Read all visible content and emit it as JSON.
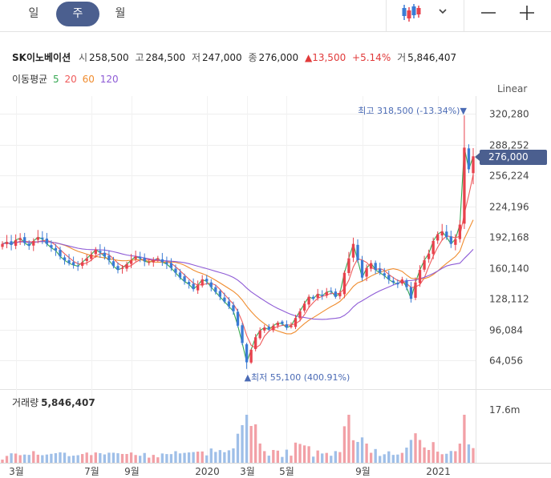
{
  "toolbar": {
    "period_tabs": [
      {
        "label": "일",
        "active": false
      },
      {
        "label": "주",
        "active": true
      },
      {
        "label": "월",
        "active": false
      }
    ],
    "chart_type_icon": "candlestick-icon",
    "dropdown_icon": "chevron-down-icon",
    "zoom_out_icon": "minus-icon",
    "zoom_in_icon": "plus-icon"
  },
  "quote": {
    "name": "SK이노베이션",
    "open_label": "시",
    "open": "258,500",
    "high_label": "고",
    "high": "284,500",
    "low_label": "저",
    "low": "247,000",
    "close_label": "종",
    "close": "276,000",
    "change": "13,500",
    "change_pct": "+5.14%",
    "volume_label": "거",
    "volume": "5,846,407"
  },
  "moving_average": {
    "label": "이동평균",
    "items": [
      {
        "period": "5",
        "color": "#36a852"
      },
      {
        "period": "20",
        "color": "#ef5b5b"
      },
      {
        "period": "60",
        "color": "#f08c2e"
      },
      {
        "period": "120",
        "color": "#8e5bd6"
      }
    ]
  },
  "scale_mode": "Linear",
  "price_badge": "276,000",
  "colors": {
    "up": "#e8424d",
    "down": "#3a7bd5",
    "up_volume": "#f2a0a6",
    "down_volume": "#9fbfe8",
    "accent": "#4b5f8f"
  },
  "chart_data": {
    "type": "candlestick",
    "y_axis": {
      "ticks": [
        64056,
        96084,
        128112,
        160140,
        192168,
        224196,
        256224,
        288252,
        320280
      ],
      "tick_labels": [
        "64,056",
        "96,084",
        "128,112",
        "160,140",
        "192,168",
        "224,196",
        "256,224",
        "288,252",
        "320,280"
      ]
    },
    "x_axis": {
      "ticks": [
        {
          "label": "3월",
          "index": 3
        },
        {
          "label": "7월",
          "index": 20
        },
        {
          "label": "9월",
          "index": 29
        },
        {
          "label": "2020",
          "index": 46
        },
        {
          "label": "3월",
          "index": 55
        },
        {
          "label": "5월",
          "index": 64
        },
        {
          "label": "9월",
          "index": 81
        },
        {
          "label": "2021",
          "index": 98
        }
      ]
    },
    "annotations": {
      "high_label": "최고",
      "high": "318,500",
      "high_pct": "(-13.34%)",
      "low_label": "최저",
      "low": "55,100",
      "low_pct": "(400.91%)"
    },
    "volume": {
      "label": "거래량",
      "value": "5,846,407",
      "max_tick": "17.6m"
    },
    "series_closes": [
      185000,
      187000,
      184000,
      189000,
      191000,
      186000,
      183000,
      188000,
      192000,
      190000,
      185000,
      181000,
      178000,
      172000,
      168000,
      165000,
      163000,
      162000,
      166000,
      170000,
      174000,
      179000,
      176000,
      172000,
      168000,
      162000,
      158000,
      160000,
      164000,
      168000,
      172000,
      170000,
      167000,
      166000,
      168000,
      170000,
      166000,
      164000,
      160000,
      155000,
      150000,
      146000,
      143000,
      138000,
      142000,
      148000,
      146000,
      140000,
      135000,
      130000,
      125000,
      120000,
      115000,
      100000,
      82000,
      62000,
      75000,
      88000,
      95000,
      98000,
      96000,
      100000,
      103000,
      102000,
      98000,
      100000,
      108000,
      115000,
      123000,
      130000,
      128000,
      133000,
      131000,
      135000,
      136000,
      130000,
      134000,
      155000,
      170000,
      185000,
      168000,
      150000,
      160000,
      165000,
      158000,
      155000,
      152000,
      148000,
      145000,
      143000,
      148000,
      140000,
      128000,
      145000,
      158000,
      168000,
      175000,
      188000,
      195000,
      198000,
      192000,
      185000,
      190000,
      205000,
      285000,
      262500,
      276000
    ]
  }
}
